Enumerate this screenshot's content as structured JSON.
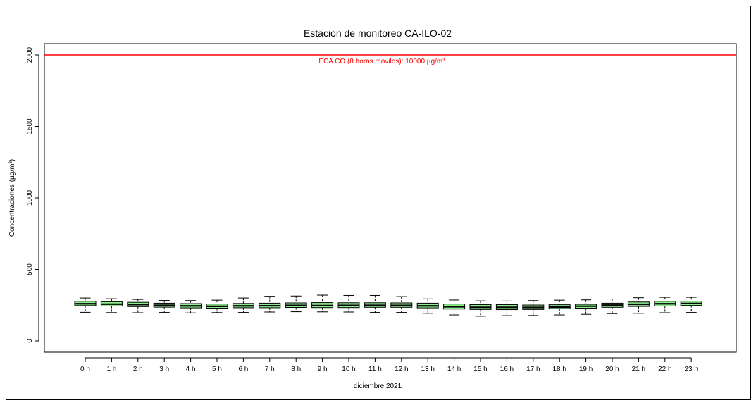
{
  "chart_data": {
    "type": "boxplot",
    "title": "Estación de monitoreo CA-ILO-02",
    "xlabel": "diciembre 2021",
    "ylabel": "Concentraciones (µg/m³)",
    "ylim": [
      -80,
      2100
    ],
    "yticks": [
      0,
      500,
      1000,
      1500,
      2000
    ],
    "grid": false,
    "box_color": "#90EE90",
    "reference_line": {
      "value": 2000,
      "label": "ECA CO (8 horas móviles): 10000 µg/m³",
      "color": "#FF0000"
    },
    "categories": [
      "0 h",
      "1 h",
      "2 h",
      "3 h",
      "4 h",
      "5 h",
      "6 h",
      "7 h",
      "8 h",
      "9 h",
      "10 h",
      "11 h",
      "12 h",
      "13 h",
      "14 h",
      "15 h",
      "16 h",
      "17 h",
      "18 h",
      "19 h",
      "20 h",
      "21 h",
      "22 h",
      "23 h"
    ],
    "boxes": [
      {
        "min": 200,
        "q1": 247,
        "median": 260,
        "q3": 277,
        "max": 300
      },
      {
        "min": 198,
        "q1": 244,
        "median": 257,
        "q3": 274,
        "max": 295
      },
      {
        "min": 197,
        "q1": 240,
        "median": 254,
        "q3": 270,
        "max": 290
      },
      {
        "min": 199,
        "q1": 236,
        "median": 249,
        "q3": 264,
        "max": 283
      },
      {
        "min": 196,
        "q1": 231,
        "median": 245,
        "q3": 261,
        "max": 282
      },
      {
        "min": 198,
        "q1": 229,
        "median": 242,
        "q3": 258,
        "max": 285
      },
      {
        "min": 199,
        "q1": 232,
        "median": 245,
        "q3": 262,
        "max": 300
      },
      {
        "min": 202,
        "q1": 232,
        "median": 246,
        "q3": 264,
        "max": 312
      },
      {
        "min": 204,
        "q1": 234,
        "median": 248,
        "q3": 266,
        "max": 314
      },
      {
        "min": 203,
        "q1": 233,
        "median": 247,
        "q3": 268,
        "max": 320
      },
      {
        "min": 202,
        "q1": 233,
        "median": 248,
        "q3": 267,
        "max": 318
      },
      {
        "min": 199,
        "q1": 235,
        "median": 249,
        "q3": 267,
        "max": 318
      },
      {
        "min": 199,
        "q1": 235,
        "median": 248,
        "q3": 266,
        "max": 310
      },
      {
        "min": 193,
        "q1": 231,
        "median": 245,
        "q3": 264,
        "max": 294
      },
      {
        "min": 182,
        "q1": 223,
        "median": 239,
        "q3": 258,
        "max": 286
      },
      {
        "min": 173,
        "q1": 220,
        "median": 235,
        "q3": 254,
        "max": 280
      },
      {
        "min": 177,
        "q1": 219,
        "median": 235,
        "q3": 254,
        "max": 279
      },
      {
        "min": 178,
        "q1": 220,
        "median": 234,
        "q3": 251,
        "max": 282
      },
      {
        "min": 182,
        "q1": 226,
        "median": 237,
        "q3": 253,
        "max": 285
      },
      {
        "min": 186,
        "q1": 229,
        "median": 243,
        "q3": 256,
        "max": 287
      },
      {
        "min": 191,
        "q1": 235,
        "median": 250,
        "q3": 264,
        "max": 293
      },
      {
        "min": 193,
        "q1": 241,
        "median": 256,
        "q3": 272,
        "max": 302
      },
      {
        "min": 197,
        "q1": 244,
        "median": 260,
        "q3": 277,
        "max": 305
      },
      {
        "min": 199,
        "q1": 248,
        "median": 262,
        "q3": 278,
        "max": 305
      }
    ]
  }
}
